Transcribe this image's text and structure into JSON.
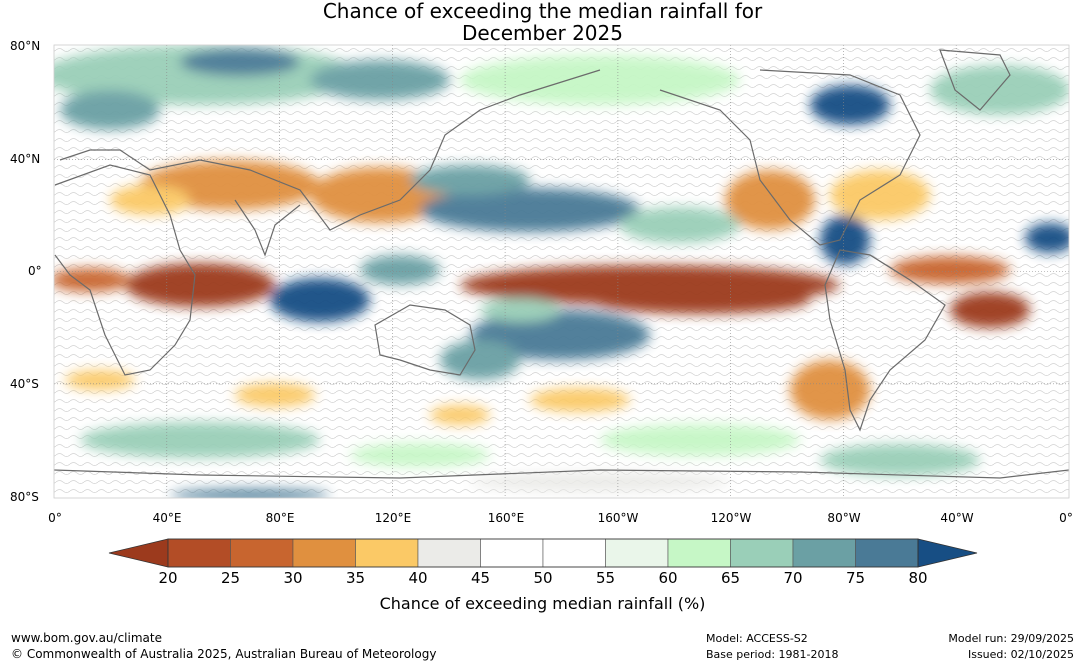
{
  "title": {
    "line1": "Chance of exceeding the median rainfall for",
    "line2": "December 2025"
  },
  "axes": {
    "lat_labels": [
      "80°N",
      "40°N",
      "0°",
      "40°S",
      "80°S"
    ],
    "lon_labels": [
      "0°",
      "40°E",
      "80°E",
      "120°E",
      "160°E",
      "160°W",
      "120°W",
      "80°W",
      "40°W",
      "0°"
    ]
  },
  "colorbar": {
    "ticks": [
      "20",
      "25",
      "30",
      "35",
      "40",
      "45",
      "50",
      "55",
      "60",
      "65",
      "70",
      "75",
      "80"
    ],
    "colors": [
      "#9c3a1d",
      "#b34d26",
      "#c8652f",
      "#e0903f",
      "#fbc966",
      "#ebebe8",
      "#ffffff",
      "#ffffff",
      "#eaf6ea",
      "#c6f7c6",
      "#9acfb8",
      "#6ba0a4",
      "#4a7a96",
      "#174e84"
    ],
    "title": "Chance of exceeding median rainfall (%)"
  },
  "footer": {
    "website": "www.bom.gov.au/climate",
    "copyright": "© Commonwealth of Australia 2025, Australian Bureau of Meteorology",
    "model": "Model: ACCESS-S2",
    "base_period": "Base period: 1981-2018",
    "model_run": "Model run: 29/09/2025",
    "issued": "Issued: 02/10/2025"
  }
}
